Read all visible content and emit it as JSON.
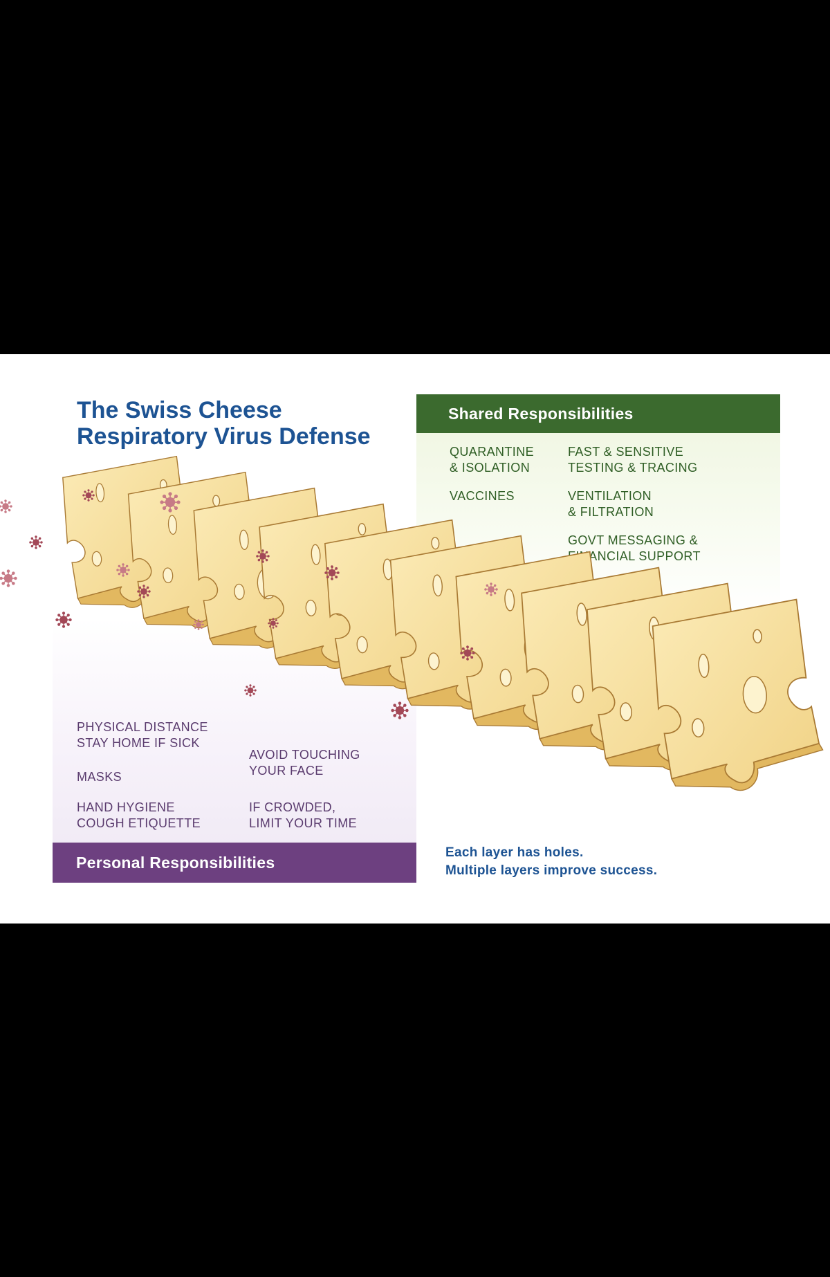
{
  "title": {
    "line1": "The Swiss Cheese",
    "line2": "Respiratory Virus Defense"
  },
  "shared": {
    "header": "Shared Responsibilities",
    "items": [
      {
        "line1": "QUARANTINE",
        "line2": "& ISOLATION"
      },
      {
        "line1": "FAST & SENSITIVE",
        "line2": "TESTING & TRACING"
      },
      {
        "line1": "VACCINES",
        "line2": ""
      },
      {
        "line1": "VENTILATION",
        "line2": "& FILTRATION"
      },
      {
        "line1": "GOVT MESSAGING &",
        "line2": "FINANCIAL SUPPORT"
      }
    ]
  },
  "personal": {
    "header": "Personal Responsibilities",
    "items": [
      {
        "line1": "PHYSICAL DISTANCE",
        "line2": "STAY HOME IF SICK"
      },
      {
        "line1": "AVOID TOUCHING",
        "line2": "YOUR FACE"
      },
      {
        "line1": "MASKS",
        "line2": ""
      },
      {
        "line1": "HAND HYGIENE",
        "line2": "COUGH ETIQUETTE"
      },
      {
        "line1": "IF CROWDED,",
        "line2": "LIMIT YOUR TIME"
      }
    ]
  },
  "caption": {
    "line1": "Each layer has holes.",
    "line2": "Multiple layers improve success."
  },
  "diagram": {
    "layer_count": 10,
    "colors": {
      "cheese_fill": "#f7df9c",
      "cheese_edge": "#e2b860",
      "cheese_outline": "#a97a34",
      "virus": "#a34857",
      "virus_light": "#c77a86",
      "title": "#1d5393",
      "shared": "#3b6a2e",
      "personal": "#6d4080"
    },
    "icons": [
      "virus-icon",
      "cheese-slice-icon"
    ]
  }
}
